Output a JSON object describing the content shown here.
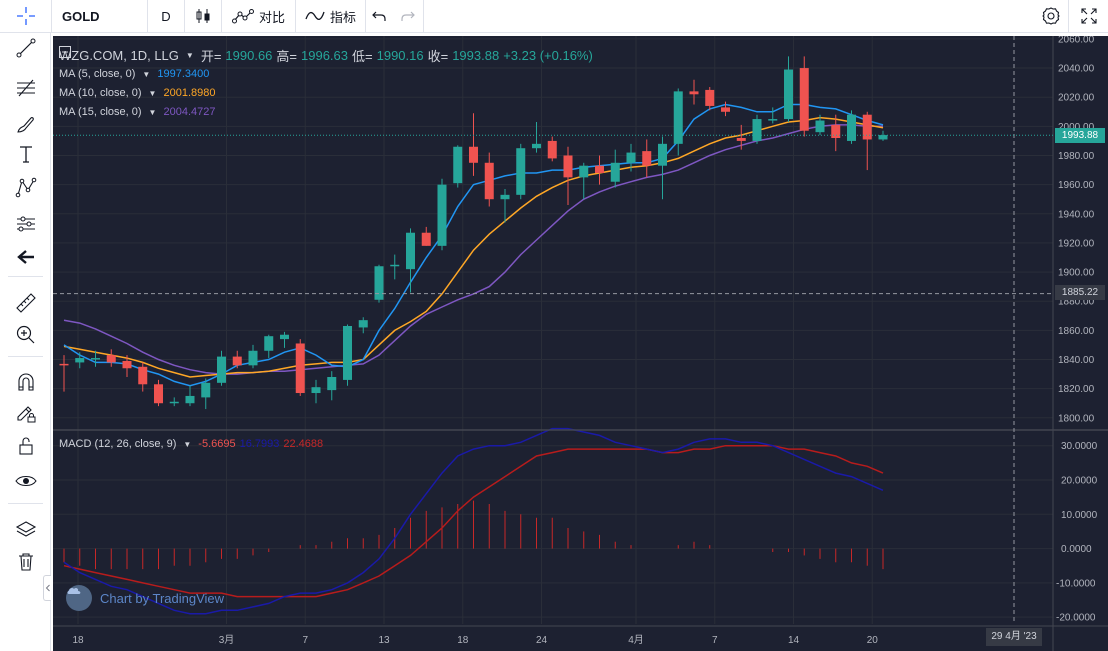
{
  "toolbar": {
    "symbol": "GOLD",
    "interval": "D",
    "compare_label": "对比",
    "indicators_label": "指标"
  },
  "legend": {
    "title": "WZG.COM, 1D, LLG",
    "open_label": "开=",
    "open": "1990.66",
    "high_label": "高=",
    "high": "1996.63",
    "low_label": "低=",
    "low": "1990.16",
    "close_label": "收=",
    "close": "1993.88",
    "change": "+3.23 (+0.16%)",
    "ma5_label": "MA (5, close, 0)",
    "ma5_value": "1997.3400",
    "ma10_label": "MA (10, close, 0)",
    "ma10_value": "2001.8980",
    "ma15_label": "MA (15, close, 0)",
    "ma15_value": "2004.4727",
    "macd_label": "MACD (12, 26, close, 9)",
    "macd_hist": "-5.6695",
    "macd_line": "16.7993",
    "macd_signal": "22.4688"
  },
  "brand": "Chart by TradingView",
  "current_price_tag": "1993.88",
  "crosshair_price_tag": "1885.22",
  "crosshair_date_tag": "29 4月 '23",
  "colors": {
    "up": "#26a69a",
    "down": "#ef5350",
    "ma5": "#2196f3",
    "ma10": "#ffa726",
    "ma15": "#7e57c2",
    "macd_line": "#1a1aa8",
    "macd_signal": "#b71c1c",
    "macd_hist": "#c62828",
    "background": "#1d2131"
  },
  "chart_data": {
    "type": "candlestick",
    "x_tick_labels": [
      "18",
      "3月",
      "7",
      "13",
      "18",
      "24",
      "4月",
      "7",
      "14",
      "20"
    ],
    "price_axis_ticks": [
      1800,
      1820,
      1840,
      1860,
      1880,
      1900,
      1920,
      1940,
      1960,
      1980,
      2000,
      2020,
      2040,
      2060
    ],
    "price_range": [
      1793,
      2062
    ],
    "candles": [
      {
        "o": 1837,
        "h": 1843,
        "l": 1818,
        "c": 1836
      },
      {
        "o": 1838,
        "h": 1845,
        "l": 1834,
        "c": 1841
      },
      {
        "o": 1840,
        "h": 1846,
        "l": 1835,
        "c": 1841
      },
      {
        "o": 1843,
        "h": 1847,
        "l": 1835,
        "c": 1838
      },
      {
        "o": 1839,
        "h": 1843,
        "l": 1828,
        "c": 1834
      },
      {
        "o": 1835,
        "h": 1838,
        "l": 1818,
        "c": 1823
      },
      {
        "o": 1823,
        "h": 1826,
        "l": 1808,
        "c": 1810
      },
      {
        "o": 1811,
        "h": 1814,
        "l": 1808,
        "c": 1811
      },
      {
        "o": 1810,
        "h": 1822,
        "l": 1808,
        "c": 1815
      },
      {
        "o": 1814,
        "h": 1827,
        "l": 1806,
        "c": 1824
      },
      {
        "o": 1824,
        "h": 1846,
        "l": 1822,
        "c": 1842
      },
      {
        "o": 1842,
        "h": 1846,
        "l": 1834,
        "c": 1836
      },
      {
        "o": 1836,
        "h": 1850,
        "l": 1834,
        "c": 1846
      },
      {
        "o": 1846,
        "h": 1857,
        "l": 1841,
        "c": 1856
      },
      {
        "o": 1854,
        "h": 1859,
        "l": 1848,
        "c": 1857
      },
      {
        "o": 1851,
        "h": 1854,
        "l": 1815,
        "c": 1817
      },
      {
        "o": 1817,
        "h": 1826,
        "l": 1810,
        "c": 1821
      },
      {
        "o": 1819,
        "h": 1832,
        "l": 1812,
        "c": 1828
      },
      {
        "o": 1826,
        "h": 1864,
        "l": 1822,
        "c": 1863
      },
      {
        "o": 1862,
        "h": 1869,
        "l": 1858,
        "c": 1867
      },
      {
        "o": 1881,
        "h": 1905,
        "l": 1879,
        "c": 1904
      },
      {
        "o": 1904,
        "h": 1912,
        "l": 1895,
        "c": 1905
      },
      {
        "o": 1902,
        "h": 1930,
        "l": 1886,
        "c": 1927
      },
      {
        "o": 1927,
        "h": 1931,
        "l": 1918,
        "c": 1918
      },
      {
        "o": 1918,
        "h": 1964,
        "l": 1915,
        "c": 1960
      },
      {
        "o": 1961,
        "h": 1987,
        "l": 1958,
        "c": 1986
      },
      {
        "o": 1986,
        "h": 2009,
        "l": 1966,
        "c": 1975
      },
      {
        "o": 1975,
        "h": 1982,
        "l": 1945,
        "c": 1950
      },
      {
        "o": 1950,
        "h": 1957,
        "l": 1934,
        "c": 1953
      },
      {
        "o": 1953,
        "h": 1988,
        "l": 1950,
        "c": 1985
      },
      {
        "o": 1985,
        "h": 2003,
        "l": 1982,
        "c": 1988
      },
      {
        "o": 1990,
        "h": 1993,
        "l": 1976,
        "c": 1978
      },
      {
        "o": 1980,
        "h": 1986,
        "l": 1946,
        "c": 1965
      },
      {
        "o": 1965,
        "h": 1975,
        "l": 1950,
        "c": 1973
      },
      {
        "o": 1973,
        "h": 1980,
        "l": 1960,
        "c": 1968
      },
      {
        "o": 1962,
        "h": 1984,
        "l": 1958,
        "c": 1975
      },
      {
        "o": 1975,
        "h": 1988,
        "l": 1969,
        "c": 1982
      },
      {
        "o": 1983,
        "h": 1991,
        "l": 1965,
        "c": 1973
      },
      {
        "o": 1973,
        "h": 1993,
        "l": 1950,
        "c": 1988
      },
      {
        "o": 1988,
        "h": 2026,
        "l": 1980,
        "c": 2024
      },
      {
        "o": 2024,
        "h": 2032,
        "l": 2015,
        "c": 2022
      },
      {
        "o": 2025,
        "h": 2027,
        "l": 2011,
        "c": 2014
      },
      {
        "o": 2013,
        "h": 2017,
        "l": 2007,
        "c": 2010
      },
      {
        "o": 1992,
        "h": 2001,
        "l": 1984,
        "c": 1990
      },
      {
        "o": 1990,
        "h": 2008,
        "l": 1988,
        "c": 2005
      },
      {
        "o": 2004,
        "h": 2013,
        "l": 2002,
        "c": 2005
      },
      {
        "o": 2005,
        "h": 2048,
        "l": 2003,
        "c": 2039
      },
      {
        "o": 2040,
        "h": 2048,
        "l": 1993,
        "c": 1997
      },
      {
        "o": 1996,
        "h": 2008,
        "l": 1994,
        "c": 2004
      },
      {
        "o": 2001,
        "h": 2008,
        "l": 1983,
        "c": 1992
      },
      {
        "o": 1990,
        "h": 2011,
        "l": 1988,
        "c": 2008
      },
      {
        "o": 2008,
        "h": 2010,
        "l": 1970,
        "c": 1991
      },
      {
        "o": 1991,
        "h": 1997,
        "l": 1990,
        "c": 1994
      }
    ],
    "ma5": [
      1850,
      1843,
      1838,
      1838,
      1837,
      1833,
      1830,
      1825,
      1822,
      1825,
      1830,
      1836,
      1838,
      1840,
      1845,
      1848,
      1843,
      1836,
      1835,
      1840,
      1860,
      1875,
      1893,
      1910,
      1925,
      1945,
      1960,
      1963,
      1966,
      1968,
      1968,
      1970,
      1970,
      1972,
      1973,
      1974,
      1975,
      1975,
      1978,
      1990,
      2005,
      2012,
      2015,
      2013,
      2010,
      2010,
      2015,
      2015,
      2013,
      2012,
      2008,
      2004,
      2001
    ],
    "ma10": [
      1849,
      1847,
      1845,
      1843,
      1841,
      1838,
      1834,
      1831,
      1828,
      1829,
      1830,
      1831,
      1831,
      1832,
      1834,
      1836,
      1837,
      1838,
      1838,
      1840,
      1850,
      1860,
      1866,
      1873,
      1885,
      1900,
      1915,
      1926,
      1935,
      1944,
      1952,
      1958,
      1963,
      1966,
      1968,
      1970,
      1972,
      1973,
      1975,
      1978,
      1983,
      1988,
      1992,
      1994,
      1997,
      2000,
      2003,
      2004,
      2006,
      2005,
      2003,
      2001,
      1999
    ],
    "ma15": [
      1867,
      1865,
      1861,
      1856,
      1851,
      1845,
      1840,
      1836,
      1833,
      1831,
      1830,
      1830,
      1831,
      1832,
      1832,
      1833,
      1834,
      1835,
      1836,
      1837,
      1843,
      1853,
      1863,
      1871,
      1876,
      1881,
      1885,
      1890,
      1900,
      1912,
      1922,
      1932,
      1942,
      1950,
      1955,
      1959,
      1962,
      1965,
      1967,
      1970,
      1975,
      1980,
      1984,
      1987,
      1990,
      1992,
      1995,
      1998,
      2000,
      2001,
      2001,
      2000,
      2000
    ],
    "macd": {
      "axis_ticks": [
        -20,
        -10,
        0,
        10,
        20,
        30
      ],
      "range": [
        -22,
        34
      ],
      "line": [
        -4,
        -7,
        -9,
        -11,
        -12,
        -14,
        -16,
        -18,
        -19,
        -19,
        -18,
        -18,
        -17,
        -16,
        -14,
        -13,
        -13,
        -12,
        -10,
        -7,
        -3,
        3,
        10,
        16,
        22,
        27,
        29,
        30,
        30,
        31,
        33,
        35,
        35,
        34,
        33,
        31,
        30,
        29,
        28,
        29,
        31,
        32,
        32,
        31,
        31,
        30,
        28,
        26,
        24,
        22,
        21,
        19,
        17
      ],
      "signal": [
        -5,
        -6,
        -7,
        -8,
        -9,
        -10,
        -11,
        -12,
        -13,
        -13,
        -13,
        -14,
        -14,
        -14,
        -14,
        -14,
        -14,
        -13,
        -12,
        -10,
        -8,
        -5,
        -2,
        2,
        6,
        11,
        15,
        18,
        21,
        24,
        27,
        28,
        29,
        29,
        29,
        29,
        29,
        29,
        28,
        28,
        29,
        29,
        30,
        30,
        30,
        30,
        29,
        29,
        28,
        27,
        25,
        24,
        22
      ],
      "hist": [
        -4,
        -5,
        -6,
        -6,
        -6,
        -6,
        -6,
        -5,
        -5,
        -4,
        -3,
        -3,
        -2,
        -1,
        0,
        1,
        1,
        2,
        3,
        3,
        4,
        6,
        9,
        11,
        12,
        13,
        14,
        13,
        11,
        10,
        9,
        9,
        6,
        5,
        4,
        2,
        1,
        0,
        0,
        1,
        2,
        1,
        0,
        0,
        0,
        -1,
        -1,
        -2,
        -3,
        -4,
        -4,
        -5,
        -6
      ]
    }
  }
}
